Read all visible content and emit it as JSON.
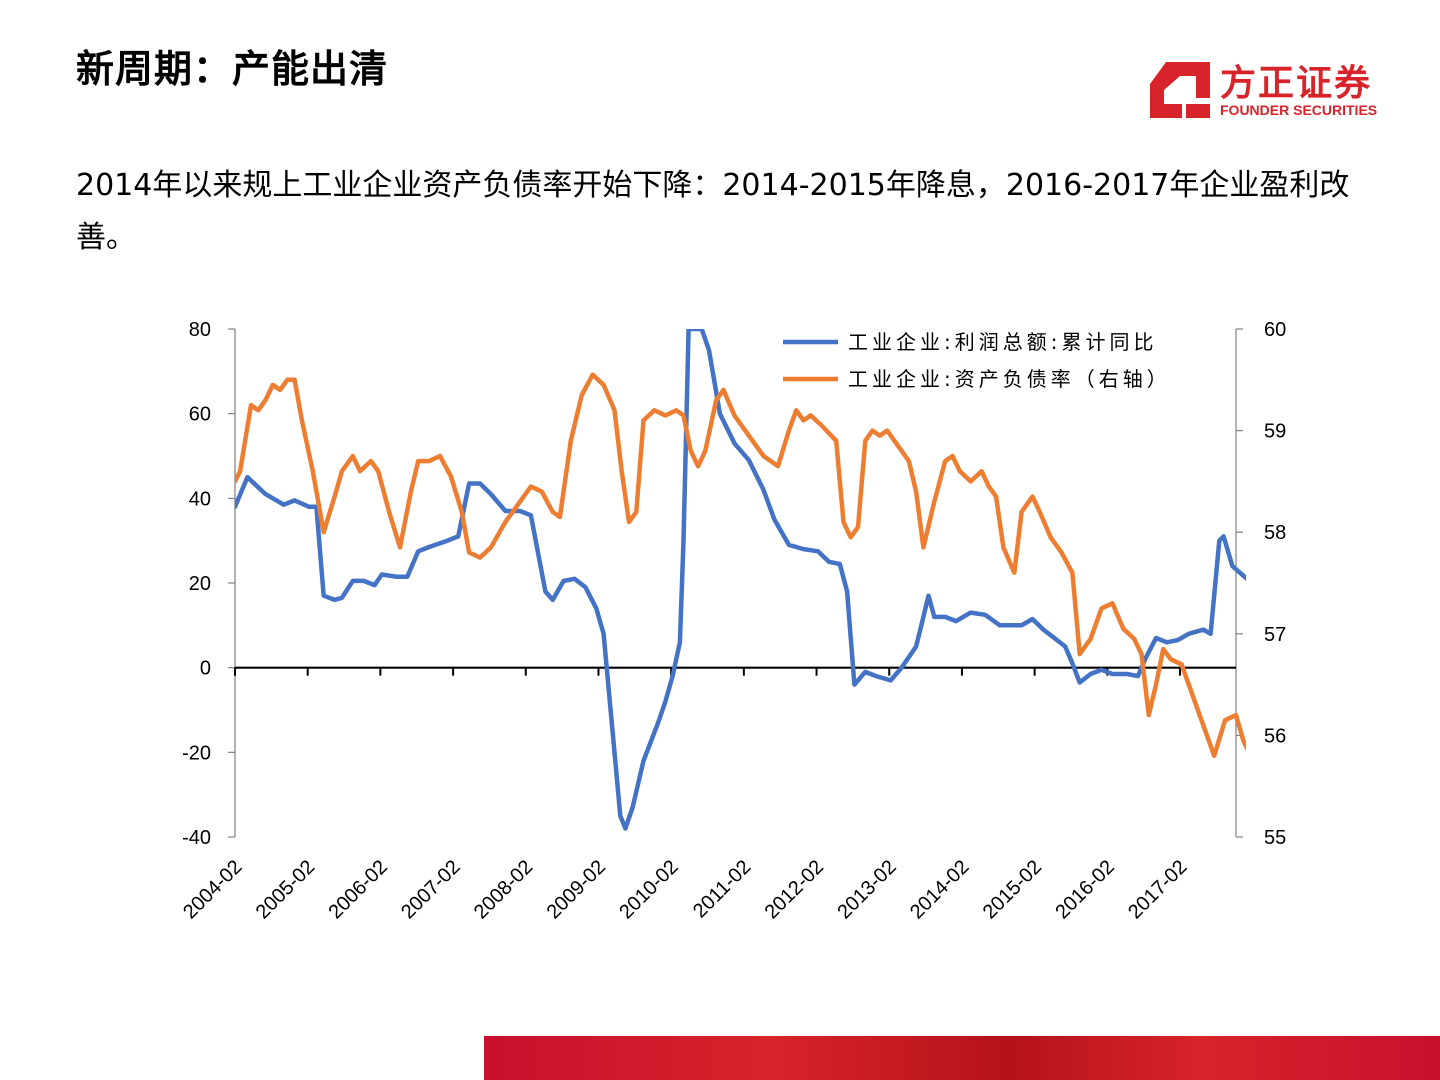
{
  "header": {
    "title": "新周期：产能出清"
  },
  "logo": {
    "cn": "方正证券",
    "en": "FOUNDER SECURITIES",
    "color": "#d8232a"
  },
  "subtitle": "2014年以来规上工业企业资产负债率开始下降：2014-2015年降息，2016-2017年企业盈利改善。",
  "chart_data": {
    "type": "line",
    "title": "",
    "y_left": {
      "ticks": [
        "80",
        "60",
        "40",
        "20",
        "0",
        "-20",
        "-40"
      ],
      "range": [
        -40,
        80
      ]
    },
    "y_right": {
      "ticks": [
        "60",
        "59",
        "58",
        "57",
        "56",
        "55"
      ],
      "range": [
        55,
        60
      ]
    },
    "x_ticks": [
      "2004-02",
      "2005-02",
      "2006-02",
      "2007-02",
      "2008-02",
      "2009-02",
      "2010-02",
      "2011-02",
      "2012-02",
      "2013-02",
      "2014-02",
      "2015-02",
      "2016-02",
      "2017-02"
    ],
    "x_range": [
      2004.08,
      2017.85
    ],
    "grid": false,
    "legend_position": "top-right",
    "series": [
      {
        "name": "工业企业:利润总额:累计同比",
        "axis": "left",
        "color": "#4472c4",
        "points": [
          [
            2004.08,
            38
          ],
          [
            2004.25,
            45
          ],
          [
            2004.5,
            41
          ],
          [
            2004.75,
            38.5
          ],
          [
            2004.9,
            39.5
          ],
          [
            2005.1,
            38
          ],
          [
            2005.2,
            38
          ],
          [
            2005.3,
            17
          ],
          [
            2005.45,
            16
          ],
          [
            2005.55,
            16.5
          ],
          [
            2005.7,
            20.5
          ],
          [
            2005.85,
            20.5
          ],
          [
            2006.0,
            19.5
          ],
          [
            2006.1,
            22
          ],
          [
            2006.3,
            21.5
          ],
          [
            2006.45,
            21.5
          ],
          [
            2006.6,
            27.5
          ],
          [
            2006.75,
            28.5
          ],
          [
            2007.0,
            30
          ],
          [
            2007.15,
            31
          ],
          [
            2007.3,
            43.5
          ],
          [
            2007.45,
            43.5
          ],
          [
            2007.6,
            41
          ],
          [
            2007.8,
            37
          ],
          [
            2008.0,
            37
          ],
          [
            2008.15,
            36
          ],
          [
            2008.35,
            18
          ],
          [
            2008.45,
            16
          ],
          [
            2008.6,
            20.5
          ],
          [
            2008.75,
            21
          ],
          [
            2008.9,
            19
          ],
          [
            2009.05,
            14
          ],
          [
            2009.15,
            8
          ],
          [
            2009.3,
            -20
          ],
          [
            2009.38,
            -35
          ],
          [
            2009.45,
            -38
          ],
          [
            2009.55,
            -33
          ],
          [
            2009.7,
            -22
          ],
          [
            2009.9,
            -13
          ],
          [
            2010.0,
            -8
          ],
          [
            2010.1,
            -2
          ],
          [
            2010.2,
            6
          ],
          [
            2010.25,
            30
          ],
          [
            2010.32,
            80
          ],
          [
            2010.38,
            80
          ],
          [
            2010.5,
            80
          ],
          [
            2010.6,
            75
          ],
          [
            2010.75,
            60
          ],
          [
            2010.95,
            53
          ],
          [
            2011.15,
            49
          ],
          [
            2011.35,
            42
          ],
          [
            2011.5,
            35
          ],
          [
            2011.7,
            29
          ],
          [
            2011.9,
            28
          ],
          [
            2012.1,
            27.5
          ],
          [
            2012.25,
            25
          ],
          [
            2012.4,
            24.5
          ],
          [
            2012.5,
            18
          ],
          [
            2012.6,
            -4
          ],
          [
            2012.75,
            -1
          ],
          [
            2012.9,
            -2
          ],
          [
            2013.1,
            -3
          ],
          [
            2013.25,
            0
          ],
          [
            2013.45,
            5
          ],
          [
            2013.55,
            12
          ],
          [
            2013.62,
            17
          ],
          [
            2013.7,
            12
          ],
          [
            2013.85,
            12
          ],
          [
            2014.0,
            11
          ],
          [
            2014.2,
            13
          ],
          [
            2014.4,
            12.5
          ],
          [
            2014.6,
            10
          ],
          [
            2014.75,
            10
          ],
          [
            2014.9,
            10
          ],
          [
            2015.05,
            11.5
          ],
          [
            2015.2,
            9
          ],
          [
            2015.35,
            7
          ],
          [
            2015.5,
            5
          ],
          [
            2015.6,
            1
          ],
          [
            2015.7,
            -3.5
          ],
          [
            2015.85,
            -1.5
          ],
          [
            2016.0,
            -0.5
          ],
          [
            2016.15,
            -1.5
          ],
          [
            2016.35,
            -1.5
          ],
          [
            2016.5,
            -2
          ],
          [
            2016.6,
            2
          ],
          [
            2016.75,
            7
          ],
          [
            2016.9,
            6
          ],
          [
            2017.05,
            6.5
          ],
          [
            2017.2,
            8
          ],
          [
            2017.4,
            9
          ],
          [
            2017.5,
            8
          ],
          [
            2017.62,
            30
          ],
          [
            2017.68,
            31
          ],
          [
            2017.8,
            24
          ],
          [
            2017.9,
            22.5
          ],
          [
            2018.0,
            21
          ]
        ]
      },
      {
        "name": "工业企业:资产负债率（右轴）",
        "axis": "right",
        "color": "#ed7d31",
        "points": [
          [
            2004.08,
            58.5
          ],
          [
            2004.15,
            58.6
          ],
          [
            2004.3,
            59.25
          ],
          [
            2004.4,
            59.2
          ],
          [
            2004.5,
            59.3
          ],
          [
            2004.6,
            59.45
          ],
          [
            2004.7,
            59.4
          ],
          [
            2004.8,
            59.5
          ],
          [
            2004.9,
            59.5
          ],
          [
            2005.0,
            59.1
          ],
          [
            2005.15,
            58.6
          ],
          [
            2005.3,
            58.0
          ],
          [
            2005.45,
            58.35
          ],
          [
            2005.55,
            58.6
          ],
          [
            2005.7,
            58.75
          ],
          [
            2005.8,
            58.6
          ],
          [
            2005.95,
            58.7
          ],
          [
            2006.05,
            58.6
          ],
          [
            2006.2,
            58.2
          ],
          [
            2006.35,
            57.85
          ],
          [
            2006.5,
            58.4
          ],
          [
            2006.6,
            58.7
          ],
          [
            2006.75,
            58.7
          ],
          [
            2006.9,
            58.75
          ],
          [
            2007.05,
            58.55
          ],
          [
            2007.2,
            58.2
          ],
          [
            2007.3,
            57.8
          ],
          [
            2007.45,
            57.75
          ],
          [
            2007.6,
            57.85
          ],
          [
            2007.8,
            58.1
          ],
          [
            2008.0,
            58.3
          ],
          [
            2008.15,
            58.45
          ],
          [
            2008.3,
            58.4
          ],
          [
            2008.45,
            58.2
          ],
          [
            2008.55,
            58.15
          ],
          [
            2008.7,
            58.9
          ],
          [
            2008.85,
            59.35
          ],
          [
            2009.0,
            59.55
          ],
          [
            2009.15,
            59.45
          ],
          [
            2009.3,
            59.2
          ],
          [
            2009.4,
            58.6
          ],
          [
            2009.5,
            58.1
          ],
          [
            2009.6,
            58.2
          ],
          [
            2009.7,
            59.1
          ],
          [
            2009.85,
            59.2
          ],
          [
            2010.0,
            59.15
          ],
          [
            2010.15,
            59.2
          ],
          [
            2010.25,
            59.15
          ],
          [
            2010.35,
            58.8
          ],
          [
            2010.45,
            58.65
          ],
          [
            2010.55,
            58.8
          ],
          [
            2010.7,
            59.3
          ],
          [
            2010.8,
            59.4
          ],
          [
            2010.95,
            59.15
          ],
          [
            2011.15,
            58.95
          ],
          [
            2011.35,
            58.75
          ],
          [
            2011.55,
            58.65
          ],
          [
            2011.7,
            59.0
          ],
          [
            2011.8,
            59.2
          ],
          [
            2011.9,
            59.1
          ],
          [
            2012.0,
            59.15
          ],
          [
            2012.15,
            59.05
          ],
          [
            2012.35,
            58.9
          ],
          [
            2012.45,
            58.1
          ],
          [
            2012.55,
            57.95
          ],
          [
            2012.65,
            58.05
          ],
          [
            2012.75,
            58.9
          ],
          [
            2012.85,
            59.0
          ],
          [
            2012.95,
            58.95
          ],
          [
            2013.05,
            59.0
          ],
          [
            2013.2,
            58.85
          ],
          [
            2013.35,
            58.7
          ],
          [
            2013.45,
            58.4
          ],
          [
            2013.55,
            57.85
          ],
          [
            2013.7,
            58.3
          ],
          [
            2013.85,
            58.7
          ],
          [
            2013.95,
            58.75
          ],
          [
            2014.05,
            58.6
          ],
          [
            2014.2,
            58.5
          ],
          [
            2014.35,
            58.6
          ],
          [
            2014.45,
            58.45
          ],
          [
            2014.55,
            58.35
          ],
          [
            2014.65,
            57.85
          ],
          [
            2014.8,
            57.6
          ],
          [
            2014.9,
            58.2
          ],
          [
            2015.05,
            58.35
          ],
          [
            2015.15,
            58.2
          ],
          [
            2015.3,
            57.95
          ],
          [
            2015.45,
            57.8
          ],
          [
            2015.6,
            57.6
          ],
          [
            2015.7,
            56.8
          ],
          [
            2015.85,
            56.95
          ],
          [
            2016.0,
            57.25
          ],
          [
            2016.15,
            57.3
          ],
          [
            2016.3,
            57.05
          ],
          [
            2016.45,
            56.95
          ],
          [
            2016.55,
            56.8
          ],
          [
            2016.65,
            56.2
          ],
          [
            2016.75,
            56.5
          ],
          [
            2016.85,
            56.85
          ],
          [
            2016.95,
            56.75
          ],
          [
            2017.1,
            56.7
          ],
          [
            2017.25,
            56.4
          ],
          [
            2017.4,
            56.1
          ],
          [
            2017.55,
            55.8
          ],
          [
            2017.7,
            56.15
          ],
          [
            2017.85,
            56.2
          ],
          [
            2017.95,
            55.95
          ],
          [
            2018.05,
            55.8
          ]
        ]
      }
    ]
  }
}
